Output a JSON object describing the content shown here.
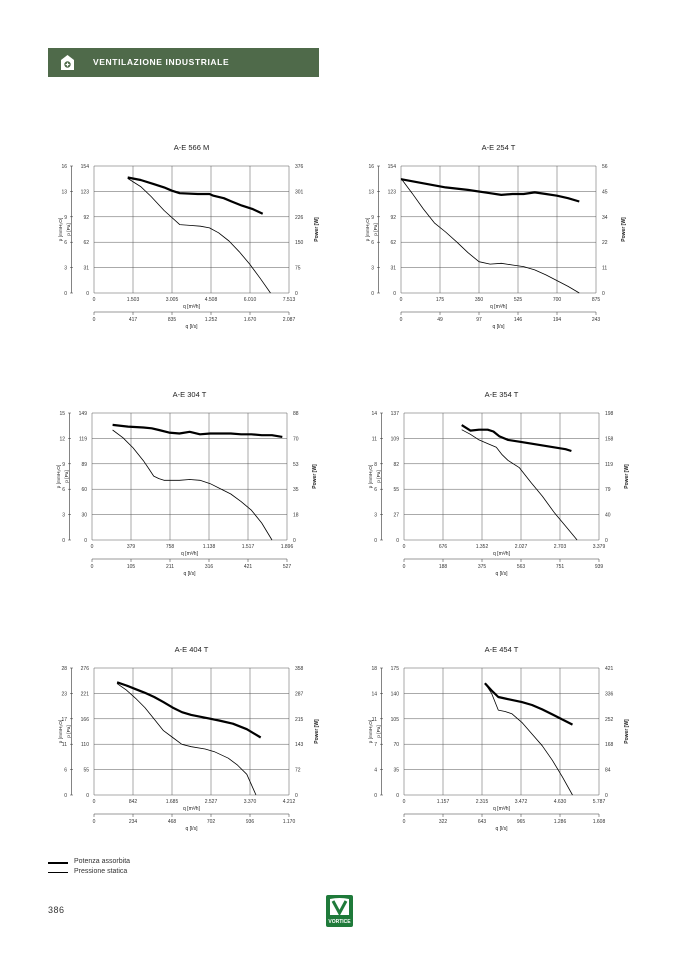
{
  "header": {
    "section_title": "VENTILAZIONE INDUSTRIALE",
    "icon": "fan-house-icon",
    "accent_color": "#4f6a4a"
  },
  "legend": {
    "power_label": "Potenza assorbita",
    "pressure_label": "Pressione statica"
  },
  "footer": {
    "page_number": "386",
    "logo": "vortice-logo",
    "logo_text": "VORTICE",
    "logo_color": "#1f7a3a"
  },
  "axis_labels": {
    "y_mmh2o": "p [mmH₂O]",
    "y_pa": "p [Pa]",
    "y_power": "Power [W]",
    "x_m3h": "q [m³/h]",
    "x_ls": "q [l/s]"
  },
  "chart_data": [
    {
      "type": "line",
      "title": "A-E 566 M",
      "y_left_mmh2o_ticks": [
        "0",
        "3",
        "6",
        "9",
        "13",
        "16"
      ],
      "y_left_pa_ticks": [
        "0",
        "31",
        "62",
        "92",
        "123",
        "154"
      ],
      "y_right_power_ticks": [
        "0",
        "75",
        "150",
        "226",
        "301",
        "376"
      ],
      "x_m3h_ticks": [
        "0",
        "1.503",
        "3.005",
        "4.508",
        "6.010",
        "7.513"
      ],
      "x_ls_ticks": [
        "0",
        "417",
        "835",
        "1.252",
        "1.670",
        "2.087"
      ],
      "ylim_pa": [
        0,
        154
      ],
      "xlim_m3h": [
        0,
        7513
      ],
      "series": [
        {
          "name": "Potenza assorbita",
          "x": [
            1300,
            1800,
            2300,
            2700,
            3000,
            3300,
            4000,
            4450,
            4600,
            5000,
            5300,
            5700,
            6100,
            6500
          ],
          "y": [
            140,
            137,
            132,
            128,
            124,
            121,
            120,
            120,
            118,
            115,
            111,
            106,
            102,
            96
          ]
        },
        {
          "name": "Pressione statica",
          "x": [
            1300,
            1800,
            2200,
            2700,
            3300,
            3700,
            4100,
            4450,
            4800,
            5200,
            5600,
            6000,
            6400,
            6800
          ],
          "y": [
            139,
            129,
            117,
            100,
            83,
            82,
            81,
            79,
            73,
            63,
            50,
            35,
            18,
            0
          ]
        }
      ]
    },
    {
      "type": "line",
      "title": "A-E 254 T",
      "y_left_mmh2o_ticks": [
        "0",
        "3",
        "6",
        "9",
        "13",
        "16"
      ],
      "y_left_pa_ticks": [
        "0",
        "31",
        "62",
        "92",
        "123",
        "154"
      ],
      "y_right_power_ticks": [
        "0",
        "11",
        "22",
        "34",
        "45",
        "56"
      ],
      "x_m3h_ticks": [
        "0",
        "175",
        "350",
        "525",
        "700",
        "875"
      ],
      "x_ls_ticks": [
        "0",
        "49",
        "97",
        "146",
        "194",
        "243"
      ],
      "ylim_pa": [
        0,
        154
      ],
      "xlim_m3h": [
        0,
        875
      ],
      "series": [
        {
          "name": "Potenza assorbita",
          "x": [
            0,
            100,
            200,
            300,
            400,
            450,
            500,
            550,
            600,
            650,
            700,
            750,
            800
          ],
          "y": [
            138,
            133,
            128,
            125,
            121,
            119,
            120,
            120,
            122,
            120,
            118,
            115,
            111
          ]
        },
        {
          "name": "Pressione statica",
          "x": [
            0,
            50,
            100,
            150,
            200,
            250,
            300,
            350,
            400,
            450,
            500,
            550,
            600,
            650,
            700,
            750,
            800
          ],
          "y": [
            139,
            121,
            102,
            85,
            74,
            62,
            49,
            38,
            35,
            36,
            34,
            32,
            28,
            22,
            15,
            8,
            0
          ]
        }
      ]
    },
    {
      "type": "line",
      "title": "A-E 304 T",
      "y_left_mmh2o_ticks": [
        "0",
        "3",
        "6",
        "9",
        "12",
        "15"
      ],
      "y_left_pa_ticks": [
        "0",
        "30",
        "60",
        "89",
        "119",
        "149"
      ],
      "y_right_power_ticks": [
        "0",
        "18",
        "35",
        "53",
        "70",
        "88"
      ],
      "x_m3h_ticks": [
        "0",
        "379",
        "758",
        "1.138",
        "1.517",
        "1.896"
      ],
      "x_ls_ticks": [
        "0",
        "105",
        "211",
        "316",
        "421",
        "527"
      ],
      "ylim_pa": [
        0,
        149
      ],
      "xlim_m3h": [
        0,
        1896
      ],
      "series": [
        {
          "name": "Potenza assorbita",
          "x": [
            200,
            350,
            500,
            580,
            650,
            750,
            850,
            950,
            1050,
            1150,
            1250,
            1350,
            1450,
            1550,
            1650,
            1750,
            1850
          ],
          "y": [
            135,
            133,
            132,
            131,
            129,
            126,
            125,
            127,
            124,
            125,
            125,
            125,
            124,
            124,
            123,
            123,
            121
          ]
        },
        {
          "name": "Pressione statica",
          "x": [
            200,
            300,
            400,
            500,
            550,
            600,
            650,
            700,
            750,
            850,
            950,
            1050,
            1150,
            1250,
            1350,
            1450,
            1550,
            1650,
            1750
          ],
          "y": [
            129,
            120,
            108,
            93,
            84,
            75,
            72,
            70,
            70,
            70,
            71,
            70,
            66,
            60,
            54,
            45,
            35,
            20,
            0
          ]
        }
      ]
    },
    {
      "type": "line",
      "title": "A-E 354 T",
      "y_left_mmh2o_ticks": [
        "0",
        "3",
        "6",
        "8",
        "11",
        "14"
      ],
      "y_left_pa_ticks": [
        "0",
        "27",
        "55",
        "82",
        "109",
        "137"
      ],
      "y_right_power_ticks": [
        "0",
        "40",
        "79",
        "119",
        "158",
        "198"
      ],
      "x_m3h_ticks": [
        "0",
        "676",
        "1.352",
        "2.027",
        "2.703",
        "3.379"
      ],
      "x_ls_ticks": [
        "0",
        "188",
        "375",
        "563",
        "751",
        "939"
      ],
      "ylim_pa": [
        0,
        137
      ],
      "xlim_m3h": [
        0,
        3379
      ],
      "series": [
        {
          "name": "Potenza assorbita",
          "x": [
            1000,
            1150,
            1300,
            1450,
            1550,
            1650,
            1800,
            2000,
            2200,
            2400,
            2600,
            2800,
            2900
          ],
          "y": [
            124,
            118,
            119,
            119,
            117,
            112,
            108,
            106,
            104,
            102,
            100,
            98,
            96
          ]
        },
        {
          "name": "Pressione statica",
          "x": [
            1000,
            1150,
            1300,
            1450,
            1600,
            1700,
            1800,
            2000,
            2200,
            2400,
            2600,
            2800,
            3000
          ],
          "y": [
            119,
            114,
            108,
            104,
            100,
            92,
            86,
            78,
            62,
            47,
            30,
            15,
            0
          ]
        }
      ]
    },
    {
      "type": "line",
      "title": "A-E 404 T",
      "y_left_mmh2o_ticks": [
        "0",
        "6",
        "11",
        "17",
        "23",
        "28"
      ],
      "y_left_pa_ticks": [
        "0",
        "55",
        "110",
        "166",
        "221",
        "276"
      ],
      "y_right_power_ticks": [
        "0",
        "72",
        "143",
        "215",
        "287",
        "358"
      ],
      "x_m3h_ticks": [
        "0",
        "842",
        "1.685",
        "2.527",
        "3.370",
        "4.212"
      ],
      "x_ls_ticks": [
        "0",
        "234",
        "468",
        "702",
        "936",
        "1.170"
      ],
      "ylim_pa": [
        0,
        276
      ],
      "xlim_m3h": [
        0,
        4212
      ],
      "series": [
        {
          "name": "Potenza assorbita",
          "x": [
            500,
            700,
            900,
            1100,
            1300,
            1500,
            1700,
            1900,
            2100,
            2400,
            2700,
            3000,
            3300,
            3600
          ],
          "y": [
            245,
            238,
            230,
            222,
            213,
            202,
            190,
            180,
            174,
            168,
            162,
            155,
            143,
            125
          ]
        },
        {
          "name": "Pressione statica",
          "x": [
            500,
            700,
            900,
            1100,
            1300,
            1500,
            1700,
            1900,
            2100,
            2400,
            2600,
            2900,
            3100,
            3300,
            3500
          ],
          "y": [
            242,
            228,
            210,
            190,
            165,
            140,
            125,
            110,
            105,
            100,
            94,
            80,
            65,
            45,
            0
          ]
        }
      ]
    },
    {
      "type": "line",
      "title": "A-E 454 T",
      "y_left_mmh2o_ticks": [
        "0",
        "4",
        "7",
        "11",
        "14",
        "18"
      ],
      "y_left_pa_ticks": [
        "0",
        "35",
        "70",
        "105",
        "140",
        "175"
      ],
      "y_right_power_ticks": [
        "0",
        "84",
        "168",
        "252",
        "336",
        "421"
      ],
      "x_m3h_ticks": [
        "0",
        "1.157",
        "2.315",
        "3.472",
        "4.630",
        "5.787"
      ],
      "x_ls_ticks": [
        "0",
        "322",
        "643",
        "965",
        "1.286",
        "1.608"
      ],
      "ylim_pa": [
        0,
        175
      ],
      "xlim_m3h": [
        0,
        5787
      ],
      "series": [
        {
          "name": "Potenza assorbita",
          "x": [
            2400,
            2600,
            2800,
            3000,
            3200,
            3500,
            3800,
            4100,
            4400,
            4700,
            5000
          ],
          "y": [
            154,
            144,
            135,
            133,
            131,
            128,
            124,
            118,
            111,
            104,
            97
          ]
        },
        {
          "name": "Pressione statica",
          "x": [
            2400,
            2600,
            2800,
            3000,
            3200,
            3500,
            3800,
            4100,
            4400,
            4700,
            5000
          ],
          "y": [
            154,
            140,
            117,
            115,
            112,
            100,
            84,
            68,
            48,
            25,
            0
          ]
        }
      ]
    }
  ]
}
